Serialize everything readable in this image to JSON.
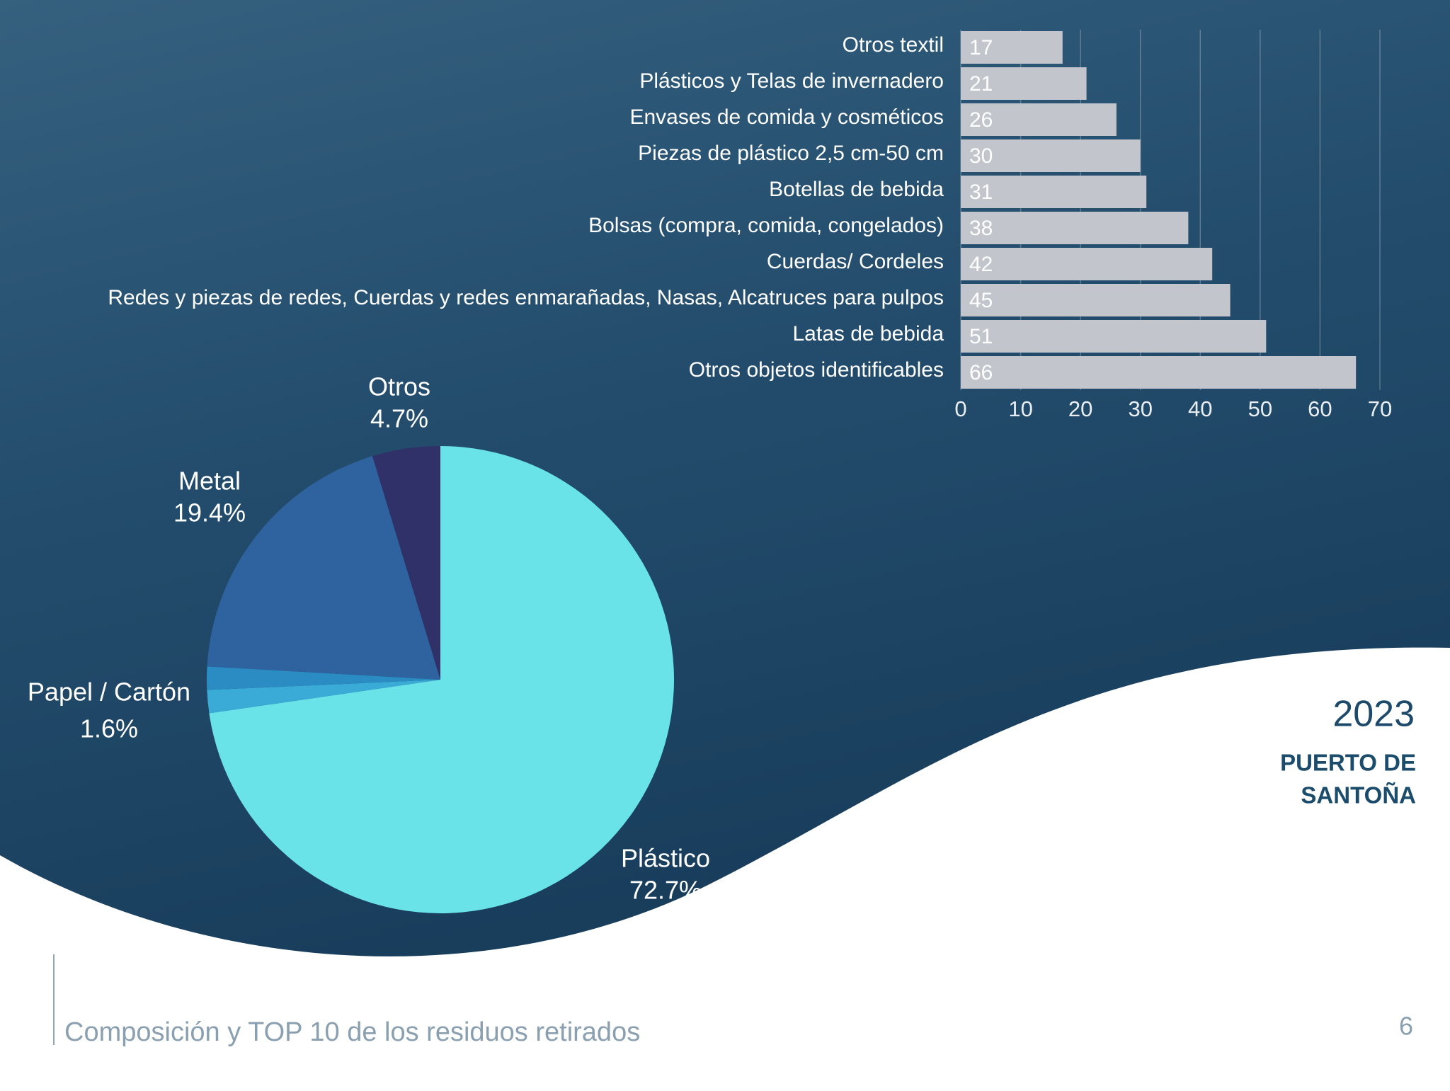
{
  "chart_data": [
    {
      "type": "pie",
      "categories": [
        "Plástico",
        null,
        "Papel / Cartón",
        "Metal",
        "Otros"
      ],
      "values": [
        72.7,
        1.6,
        1.6,
        19.4,
        4.7
      ],
      "value_labels": [
        "72.7%",
        null,
        "1.6%",
        "19.4%",
        "4.7%"
      ],
      "colors": [
        "#6ae3e8",
        "#3aaad6",
        "#2a8cc2",
        "#2f63a0",
        "#2f3168"
      ]
    },
    {
      "type": "hbar",
      "categories": [
        "Otros textil",
        "Plásticos y Telas de invernadero",
        "Envases de comida y cosméticos",
        "Piezas de plástico 2,5 cm-50 cm",
        "Botellas de bebida",
        "Bolsas (compra, comida, congelados)",
        "Cuerdas/ Cordeles",
        "Redes y piezas de redes, Cuerdas y redes enmarañadas, Nasas, Alcatruces para pulpos",
        "Latas de bebida",
        "Otros objetos identificables"
      ],
      "values": [
        17,
        21,
        26,
        30,
        31,
        38,
        42,
        45,
        51,
        66
      ],
      "color": "#c2c6cc",
      "xlim": [
        0,
        70
      ],
      "xticks": [
        0,
        10,
        20,
        30,
        40,
        50,
        60,
        70
      ],
      "grid": true
    }
  ],
  "slide": {
    "year": "2023",
    "location": [
      "PUERTO DE",
      "SANTOÑA"
    ],
    "caption": "Composición y TOP 10 de los residuos retirados",
    "page": "6"
  }
}
